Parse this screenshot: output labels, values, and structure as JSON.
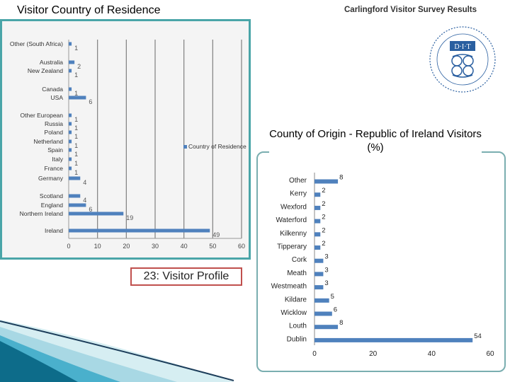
{
  "slide": {
    "title": "Visitor Country of Residence",
    "survey_title": "Carlingford Visitor Survey Results",
    "profile_label": "23: Visitor Profile"
  },
  "logo": {
    "name": "dit-logo",
    "text": "D·I·T"
  },
  "colors": {
    "bar": "#4f81bd",
    "frame": "#4aa5a8",
    "profile_border": "#c0504d",
    "grid": "#7f7f7f"
  },
  "chart_data": [
    {
      "type": "bar",
      "orientation": "horizontal",
      "title": "",
      "categories": [
        "Other (South Africa)",
        "Australia",
        "New Zealand",
        "Canada",
        "USA",
        "Other European",
        "Russia",
        "Poland",
        "Netherland",
        "Spain",
        "Italy",
        "France",
        "Germany",
        "Scotland",
        "England",
        "Northern Ireland",
        "Ireland"
      ],
      "series": [
        {
          "name": "Country of Residence",
          "values": [
            1,
            2,
            1,
            1,
            6,
            1,
            1,
            1,
            1,
            1,
            1,
            1,
            4,
            4,
            6,
            19,
            49
          ]
        }
      ],
      "xlim": [
        0,
        60
      ],
      "xticks": [
        0,
        10,
        20,
        30,
        40,
        50,
        60
      ],
      "grid": "vertical",
      "legend": "right"
    },
    {
      "type": "bar",
      "orientation": "horizontal",
      "title": "County of Origin - Republic of Ireland Visitors (%)",
      "categories": [
        "Other",
        "Kerry",
        "Wexford",
        "Waterford",
        "Kilkenny",
        "Tipperary",
        "Cork",
        "Meath",
        "Westmeath",
        "Kildare",
        "Wicklow",
        "Louth",
        "Dublin"
      ],
      "values": [
        8,
        2,
        2,
        2,
        2,
        2,
        3,
        3,
        3,
        5,
        6,
        8,
        54
      ],
      "xlim": [
        0,
        60
      ],
      "xticks": [
        0,
        20,
        40,
        60
      ],
      "grid": "none",
      "legend": "none"
    }
  ]
}
